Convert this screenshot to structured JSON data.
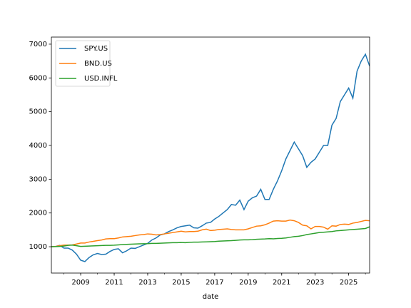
{
  "chart_data": {
    "type": "line",
    "x_label": "date",
    "x": [
      2007.25,
      2007.5,
      2007.75,
      2008,
      2008.25,
      2008.5,
      2008.75,
      2009,
      2009.25,
      2009.5,
      2009.75,
      2010,
      2010.25,
      2010.5,
      2010.75,
      2011,
      2011.25,
      2011.5,
      2011.75,
      2012,
      2012.25,
      2012.5,
      2012.75,
      2013,
      2013.25,
      2013.5,
      2013.75,
      2014,
      2014.25,
      2014.5,
      2014.75,
      2015,
      2015.25,
      2015.5,
      2015.75,
      2016,
      2016.25,
      2016.5,
      2016.75,
      2017,
      2017.25,
      2017.5,
      2017.75,
      2018,
      2018.25,
      2018.5,
      2018.75,
      2019,
      2019.25,
      2019.5,
      2019.75,
      2020,
      2020.25,
      2020.5,
      2020.75,
      2021,
      2021.25,
      2021.5,
      2021.75,
      2022,
      2022.25,
      2022.5,
      2022.75,
      2023,
      2023.25,
      2023.5,
      2023.75,
      2024,
      2024.25,
      2024.5,
      2024.75,
      2025,
      2025.25,
      2025.5,
      2025.75,
      2026,
      2026.25
    ],
    "series": [
      {
        "name": "SPY.US",
        "color": "#1f77b4",
        "values": [
          1000,
          1010,
          1040,
          960,
          960,
          900,
          780,
          600,
          560,
          680,
          760,
          800,
          770,
          780,
          860,
          920,
          940,
          820,
          880,
          960,
          950,
          1000,
          1050,
          1100,
          1200,
          1260,
          1350,
          1380,
          1450,
          1500,
          1560,
          1600,
          1620,
          1640,
          1560,
          1550,
          1620,
          1700,
          1720,
          1820,
          1900,
          2000,
          2100,
          2250,
          2230,
          2380,
          2100,
          2350,
          2450,
          2500,
          2700,
          2400,
          2400,
          2700,
          2950,
          3250,
          3600,
          3850,
          4100,
          3900,
          3700,
          3350,
          3500,
          3600,
          3800,
          4000,
          4000,
          4600,
          4800,
          5300,
          5500,
          5700,
          5400,
          6200,
          6500,
          6700,
          6350
        ]
      },
      {
        "name": "BND.US",
        "color": "#ff7f0e",
        "values": [
          1000,
          1010,
          1030,
          1050,
          1050,
          1055,
          1080,
          1110,
          1110,
          1140,
          1160,
          1180,
          1200,
          1230,
          1240,
          1240,
          1260,
          1290,
          1300,
          1310,
          1330,
          1350,
          1360,
          1380,
          1370,
          1350,
          1360,
          1380,
          1400,
          1420,
          1440,
          1460,
          1440,
          1450,
          1450,
          1460,
          1500,
          1520,
          1480,
          1490,
          1510,
          1520,
          1530,
          1510,
          1500,
          1500,
          1500,
          1530,
          1570,
          1610,
          1620,
          1650,
          1700,
          1760,
          1770,
          1760,
          1760,
          1790,
          1770,
          1720,
          1640,
          1620,
          1530,
          1600,
          1600,
          1580,
          1520,
          1620,
          1610,
          1660,
          1670,
          1660,
          1700,
          1720,
          1750,
          1780,
          1770
        ]
      },
      {
        "name": "USD.INFL",
        "color": "#2ca02c",
        "values": [
          1000,
          1005,
          1010,
          1020,
          1040,
          1050,
          1030,
          1010,
          1015,
          1020,
          1025,
          1030,
          1035,
          1040,
          1042,
          1045,
          1055,
          1065,
          1070,
          1075,
          1080,
          1085,
          1088,
          1090,
          1100,
          1100,
          1105,
          1110,
          1115,
          1120,
          1120,
          1125,
          1120,
          1130,
          1135,
          1135,
          1140,
          1145,
          1150,
          1155,
          1165,
          1170,
          1175,
          1180,
          1190,
          1200,
          1205,
          1205,
          1210,
          1220,
          1225,
          1230,
          1240,
          1235,
          1245,
          1250,
          1260,
          1280,
          1300,
          1310,
          1330,
          1360,
          1380,
          1400,
          1420,
          1430,
          1440,
          1450,
          1470,
          1480,
          1490,
          1500,
          1510,
          1520,
          1530,
          1540,
          1590
        ]
      }
    ],
    "xlim": [
      2007.25,
      2026.25
    ],
    "xticks": [
      2009,
      2011,
      2013,
      2015,
      2017,
      2019,
      2021,
      2023,
      2025
    ],
    "ylim": [
      220,
      7210
    ],
    "yticks": [
      1000,
      2000,
      3000,
      4000,
      5000,
      6000,
      7000
    ],
    "legend": "upper left",
    "grid": false
  }
}
